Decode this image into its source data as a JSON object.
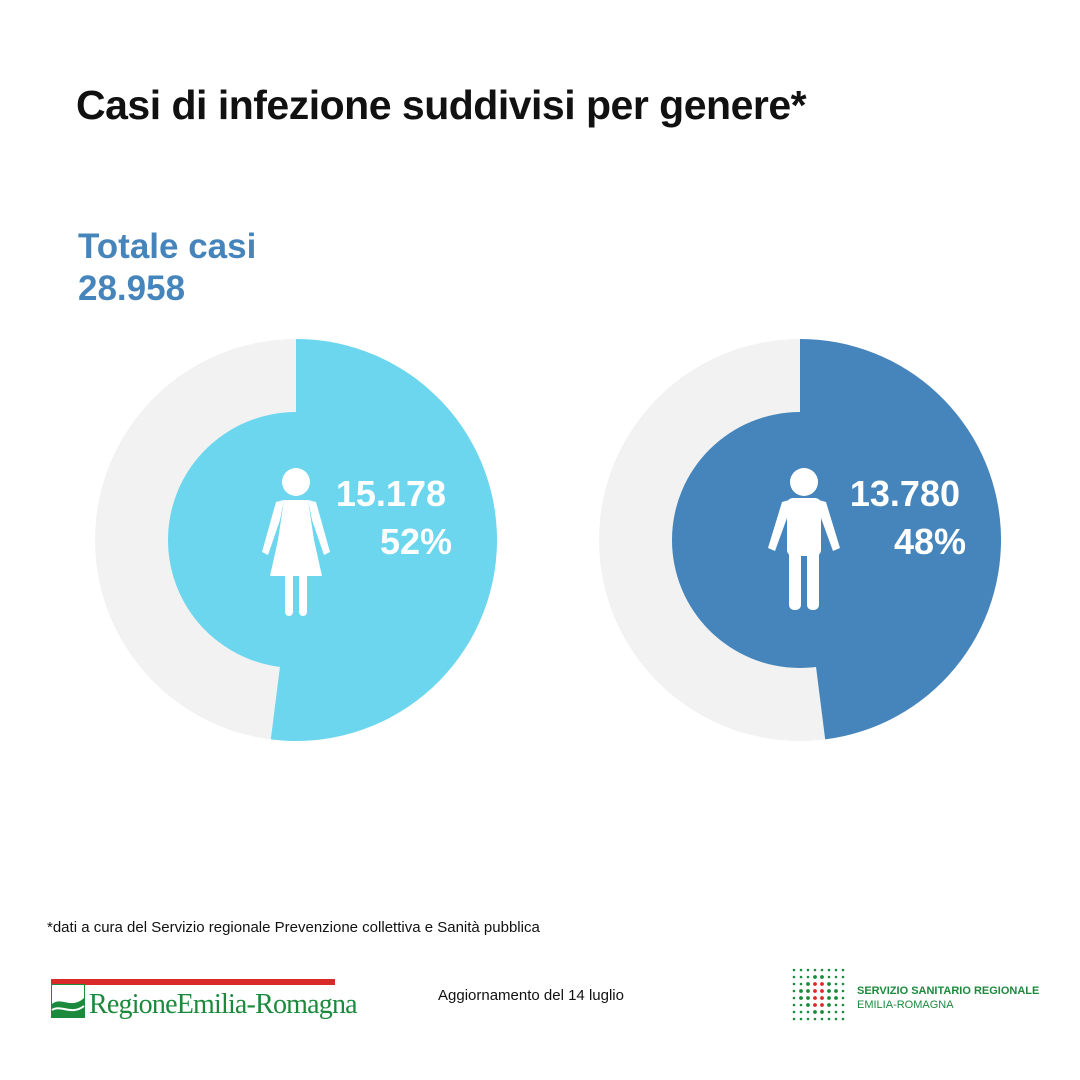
{
  "title": "Casi di infezione suddivisi per genere*",
  "total": {
    "label": "Totale casi",
    "value": "28.958"
  },
  "chart_data": {
    "type": "pie",
    "colors": {
      "female": "#6cd6ee",
      "male": "#4585bb",
      "remainder": "#f2f2f2",
      "text": "#ffffff"
    },
    "series": [
      {
        "count": 15178,
        "count_label": "15.178",
        "percent": 52,
        "percent_label": "52%",
        "icon": "female-icon",
        "color": "#6cd6ee"
      },
      {
        "count": 13780,
        "count_label": "13.780",
        "percent": 48,
        "percent_label": "48%",
        "icon": "male-icon",
        "color": "#4585bb"
      }
    ]
  },
  "footnote": "*dati a cura del Servizio regionale Prevenzione collettiva e Sanità pubblica",
  "update": "Aggiornamento del 14 luglio",
  "logos": {
    "left": {
      "text": "RegioneEmilia-Romagna",
      "icon": "regione-emilia-romagna-logo"
    },
    "right": {
      "line1": "SERVIZIO SANITARIO REGIONALE",
      "line2": "EMILIA-ROMAGNA",
      "icon": "ssr-dots-logo"
    }
  }
}
